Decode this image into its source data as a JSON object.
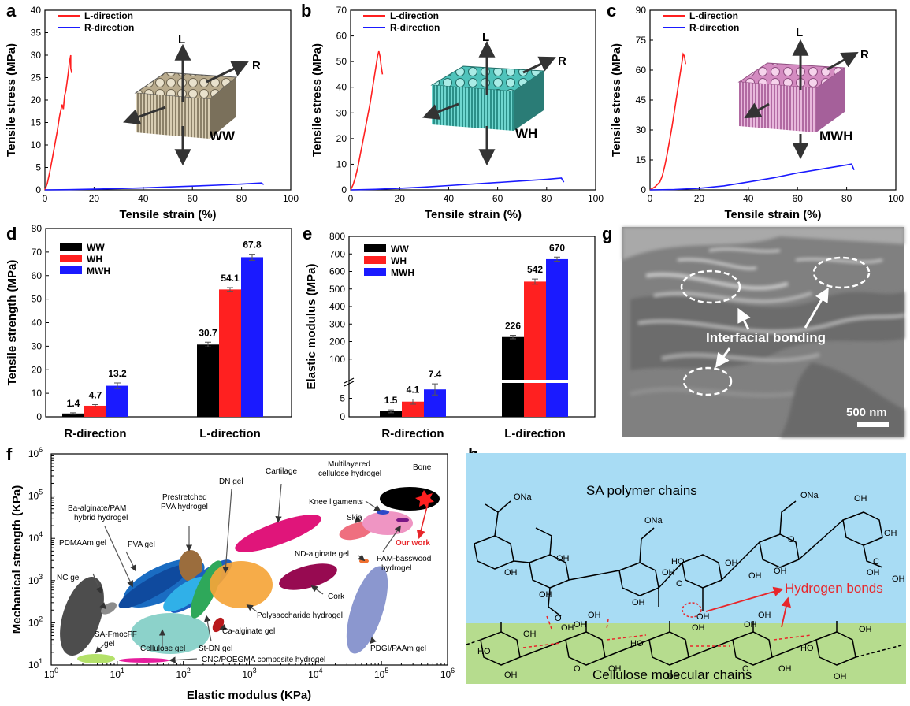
{
  "panel_labels": [
    "a",
    "b",
    "c",
    "d",
    "e",
    "f",
    "g",
    "h"
  ],
  "colors": {
    "red": "#ff2020",
    "blue": "#1a1aff",
    "black": "#000000",
    "sem_bg": "#7d7d7d",
    "sky": "#a8dcf4",
    "grass": "#b6dc8e",
    "accent_red": "#e8262a"
  },
  "legend": {
    "l": "L-direction",
    "r": "R-direction"
  },
  "schematic": {
    "l": "L",
    "r": "R"
  },
  "chart_data": [
    {
      "id": "a",
      "type": "line",
      "title": "",
      "xlabel": "Tensile strain (%)",
      "ylabel": "Tensile  stress (MPa)",
      "xlim": [
        0,
        100
      ],
      "ylim": [
        0,
        40
      ],
      "xticks": [
        0,
        20,
        40,
        60,
        80,
        100
      ],
      "yticks": [
        0,
        5,
        10,
        15,
        20,
        25,
        30,
        35,
        40
      ],
      "sample": "WW",
      "series": [
        {
          "name": "L-direction",
          "x": [
            0,
            1,
            2,
            3,
            4,
            5,
            6,
            7,
            7.5,
            8,
            8.5,
            9,
            9.5,
            10,
            10.5,
            10.5,
            11
          ],
          "y": [
            0,
            1.5,
            4,
            7,
            10,
            13,
            16.5,
            19,
            18,
            21,
            22,
            24,
            26,
            28.5,
            30,
            27,
            26
          ]
        },
        {
          "name": "R-direction",
          "x": [
            0,
            10,
            20,
            30,
            40,
            50,
            60,
            70,
            80,
            88,
            89
          ],
          "y": [
            0,
            0.05,
            0.15,
            0.3,
            0.45,
            0.65,
            0.85,
            1.05,
            1.3,
            1.55,
            1.2
          ]
        }
      ]
    },
    {
      "id": "b",
      "type": "line",
      "title": "",
      "xlabel": "Tensile strain (%)",
      "ylabel": "Tensile  stress (MPa)",
      "xlim": [
        0,
        100
      ],
      "ylim": [
        0,
        70
      ],
      "xticks": [
        0,
        20,
        40,
        60,
        80,
        100
      ],
      "yticks": [
        0,
        10,
        20,
        30,
        40,
        50,
        60,
        70
      ],
      "sample": "WH",
      "series": [
        {
          "name": "L-direction",
          "x": [
            0,
            1,
            2,
            3,
            4,
            5,
            6,
            7,
            8,
            9,
            10,
            11,
            11.5,
            12,
            12.5,
            13
          ],
          "y": [
            0,
            2,
            5,
            9,
            14,
            19,
            24,
            29,
            34,
            40,
            46,
            52,
            54,
            52,
            48,
            45
          ]
        },
        {
          "name": "R-direction",
          "x": [
            0,
            10,
            20,
            30,
            40,
            50,
            60,
            70,
            80,
            86,
            87
          ],
          "y": [
            0,
            0.2,
            0.6,
            1.1,
            1.7,
            2.3,
            2.9,
            3.5,
            4.1,
            4.6,
            3.0
          ]
        }
      ]
    },
    {
      "id": "c",
      "type": "line",
      "title": "",
      "xlabel": "Tensile strain (%)",
      "ylabel": "Tensile  stress (MPa)",
      "xlim": [
        0,
        100
      ],
      "ylim": [
        0,
        90
      ],
      "xticks": [
        0,
        20,
        40,
        60,
        80,
        100
      ],
      "yticks": [
        0,
        15,
        30,
        45,
        60,
        75,
        90
      ],
      "sample": "MWH",
      "series": [
        {
          "name": "L-direction",
          "x": [
            0,
            2,
            4,
            5,
            6,
            7,
            8,
            9,
            10,
            11,
            12,
            13,
            13.5,
            14,
            14.5
          ],
          "y": [
            0,
            1.5,
            4,
            7,
            12,
            18,
            25,
            32,
            40,
            48,
            56,
            64,
            68,
            67,
            63
          ]
        },
        {
          "name": "R-direction",
          "x": [
            0,
            10,
            20,
            30,
            40,
            50,
            60,
            70,
            80,
            82,
            83
          ],
          "y": [
            0,
            0.2,
            0.8,
            2,
            4,
            6,
            8.5,
            10.5,
            12.5,
            13,
            10
          ]
        }
      ]
    },
    {
      "id": "d",
      "type": "bar",
      "title": "",
      "xlabel": "",
      "ylabel": "Tensile  strength (MPa)",
      "ylim": [
        0,
        80
      ],
      "yticks": [
        0,
        10,
        20,
        30,
        40,
        50,
        60,
        70,
        80
      ],
      "categories": [
        "R-direction",
        "L-direction"
      ],
      "series": [
        {
          "name": "WW",
          "values": [
            1.4,
            30.7
          ],
          "errors": [
            0.3,
            1.0
          ]
        },
        {
          "name": "WH",
          "values": [
            4.7,
            54.1
          ],
          "errors": [
            0.5,
            0.8
          ]
        },
        {
          "name": "MWH",
          "values": [
            13.2,
            67.8
          ],
          "errors": [
            1.2,
            1.3
          ]
        }
      ],
      "labels": [
        "1.4",
        "30.7",
        "4.7",
        "54.1",
        "13.2",
        "67.8"
      ]
    },
    {
      "id": "e",
      "type": "bar",
      "title": "",
      "xlabel": "",
      "ylabel": "Elastic modulus (MPa)",
      "ylim_lower": [
        0,
        10
      ],
      "ylim_upper": [
        0,
        800
      ],
      "yticks_lower": [
        0,
        5
      ],
      "yticks_upper": [
        100,
        200,
        300,
        400,
        500,
        600,
        700,
        800
      ],
      "categories": [
        "R-direction",
        "L-direction"
      ],
      "series": [
        {
          "name": "WW",
          "values": [
            1.5,
            226
          ],
          "errors": [
            0.4,
            10
          ]
        },
        {
          "name": "WH",
          "values": [
            4.1,
            542
          ],
          "errors": [
            0.7,
            15
          ]
        },
        {
          "name": "MWH",
          "values": [
            7.4,
            670
          ],
          "errors": [
            1.5,
            12
          ]
        }
      ],
      "labels": [
        "1.5",
        "226",
        "4.1",
        "542",
        "7.4",
        "670"
      ]
    },
    {
      "id": "f",
      "type": "scatter",
      "title": "",
      "xlabel": "Elastic modulus (KPa)",
      "ylabel": "Mechanical strength (KPa)",
      "xscale": "log",
      "yscale": "log",
      "xlim": [
        1,
        1000000
      ],
      "ylim": [
        10,
        1000000
      ],
      "xticks": [
        "10",
        "10",
        "10",
        "10",
        "10",
        "10",
        "10"
      ],
      "xexp": [
        "0",
        "1",
        "2",
        "3",
        "4",
        "5",
        "6"
      ],
      "yticks": [
        "10",
        "10",
        "10",
        "10",
        "10",
        "10"
      ],
      "yexp": [
        "1",
        "2",
        "3",
        "4",
        "5",
        "6"
      ],
      "materials": [
        "NC gel",
        "PDMAAm gel",
        "PVA gel",
        "Ba-alginate/PAM hybrid hydrogel",
        "Prestretched PVA hydrogel",
        "DN gel",
        "Cartilage",
        "Multilayered cellulose hydrogel",
        "Bone",
        "Knee ligaments",
        "Skin",
        "Our work",
        "ND-alginate gel",
        "PAM-basswood hydrogel",
        "Cork",
        "Polysaccharide hydrogel",
        "Ca-alginate gel",
        "St-DN gel",
        "Cellulose gel",
        "SA-FmocFF gel",
        "CNC/POEGMA composite hydrogel",
        "PDGI/PAAm gel"
      ]
    },
    {
      "id": "g",
      "type": "image",
      "annotation": "Interfacial bonding",
      "scale_bar": "500 nm"
    },
    {
      "id": "h",
      "type": "diagram",
      "top_label": "SA polymer chains",
      "bottom_label": "Cellulose molecular chains",
      "annotation": "Hydrogen bonds"
    }
  ],
  "f_annotations": {
    "nc": "NC gel",
    "pdmaam": "PDMAAm gel",
    "pva": "PVA gel",
    "ba1": "Ba-alginate/PAM",
    "ba2": "hybrid hydrogel",
    "pre1": "Prestretched",
    "pre2": "PVA hydrogel",
    "dn": "DN gel",
    "cart": "Cartilage",
    "ml1": "Multilayered",
    "ml2": "cellulose hydrogel",
    "bone": "Bone",
    "knee": "Knee ligaments",
    "skin": "Skin",
    "ours": "Our work",
    "nd": "ND-alginate gel",
    "pam1": "PAM-basswood",
    "pam2": "hydrogel",
    "cork": "Cork",
    "poly": "Polysaccharide hydrogel",
    "ca": "Ca-alginate gel",
    "st": "St-DN gel",
    "cell": "Cellulose gel",
    "sa1": "SA-FmocFF",
    "sa2": "gel",
    "cnc": "CNC/POEGMA composite hydrogel",
    "pdgi": "PDGI/PAAm gel"
  },
  "h_chem": {
    "oh": "OH",
    "o": "O",
    "ho": "HO",
    "ona": "ONa",
    "c": "C"
  }
}
